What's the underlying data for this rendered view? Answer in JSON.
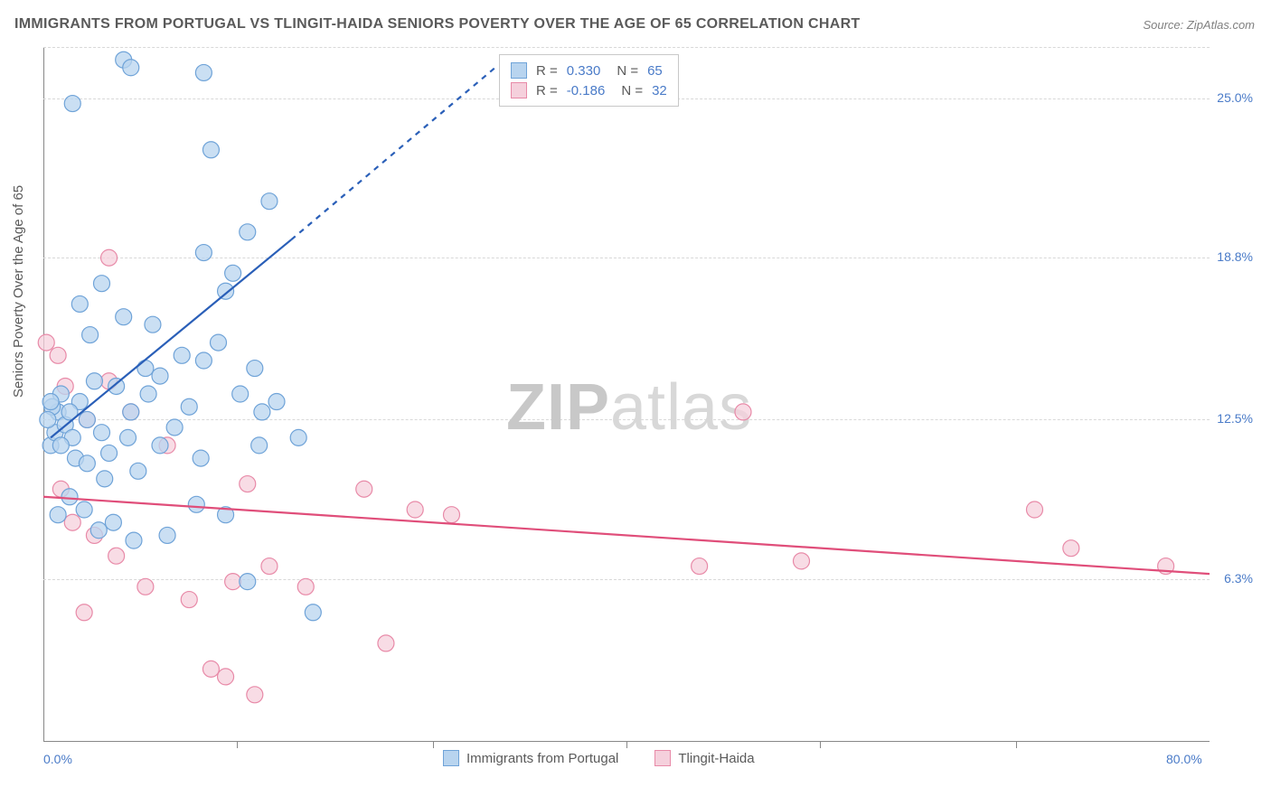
{
  "title": "IMMIGRANTS FROM PORTUGAL VS TLINGIT-HAIDA SENIORS POVERTY OVER THE AGE OF 65 CORRELATION CHART",
  "source": "Source: ZipAtlas.com",
  "ylabel": "Seniors Poverty Over the Age of 65",
  "watermark_a": "ZIP",
  "watermark_b": "atlas",
  "chart": {
    "type": "scatter",
    "xlim": [
      0,
      80
    ],
    "ylim": [
      0,
      27
    ],
    "x_ticks": [
      0,
      80
    ],
    "x_tick_labels": [
      "0.0%",
      "80.0%"
    ],
    "x_minor_ticks": [
      13.3,
      26.7,
      40,
      53.3,
      66.7
    ],
    "y_grid": [
      6.3,
      12.5,
      18.8,
      25.0
    ],
    "y_tick_labels": [
      "6.3%",
      "12.5%",
      "18.8%",
      "25.0%"
    ],
    "background_color": "#ffffff",
    "grid_color": "#d8d8d8",
    "axis_color": "#888888",
    "title_color": "#5a5a5a",
    "title_fontsize": 16,
    "label_fontsize": 15,
    "tick_fontsize": 14,
    "tick_color": "#4a7bc8"
  },
  "series": {
    "portugal": {
      "label": "Immigrants from Portugal",
      "color_fill": "#b8d4ef",
      "color_stroke": "#6fa3d8",
      "marker_radius": 9,
      "marker_opacity": 0.75,
      "trend_color": "#2a5fb8",
      "trend_width": 2.2,
      "trend_solid": {
        "x1": 0.5,
        "y1": 11.8,
        "x2": 17,
        "y2": 19.5
      },
      "trend_dash": {
        "x1": 17,
        "y1": 19.5,
        "x2": 31,
        "y2": 26.2
      },
      "R": "0.330",
      "N": "65",
      "points": [
        [
          0.5,
          11.5
        ],
        [
          0.8,
          12.0
        ],
        [
          1.0,
          12.8
        ],
        [
          1.2,
          13.5
        ],
        [
          0.6,
          13.0
        ],
        [
          1.5,
          12.3
        ],
        [
          2.0,
          11.8
        ],
        [
          2.5,
          13.2
        ],
        [
          3.0,
          12.5
        ],
        [
          3.5,
          14.0
        ],
        [
          4.0,
          12.0
        ],
        [
          4.5,
          11.2
        ],
        [
          5.0,
          13.8
        ],
        [
          6.0,
          12.8
        ],
        [
          7.0,
          14.5
        ],
        [
          8.0,
          11.5
        ],
        [
          9.0,
          12.2
        ],
        [
          10.0,
          13.0
        ],
        [
          11.0,
          14.8
        ],
        [
          12.0,
          15.5
        ],
        [
          5.5,
          16.5
        ],
        [
          3.2,
          15.8
        ],
        [
          7.5,
          16.2
        ],
        [
          4.8,
          8.5
        ],
        [
          6.2,
          7.8
        ],
        [
          8.5,
          8.0
        ],
        [
          10.5,
          9.2
        ],
        [
          12.5,
          8.8
        ],
        [
          5.5,
          26.5
        ],
        [
          6.0,
          26.2
        ],
        [
          11.0,
          26.0
        ],
        [
          2.0,
          24.8
        ],
        [
          11.5,
          23.0
        ],
        [
          14.0,
          19.8
        ],
        [
          15.5,
          21.0
        ],
        [
          11.0,
          19.0
        ],
        [
          12.5,
          17.5
        ],
        [
          14.5,
          14.5
        ],
        [
          15.0,
          12.8
        ],
        [
          13.0,
          18.2
        ],
        [
          1.8,
          9.5
        ],
        [
          2.8,
          9.0
        ],
        [
          3.8,
          8.2
        ],
        [
          1.0,
          8.8
        ],
        [
          2.2,
          11.0
        ],
        [
          0.3,
          12.5
        ],
        [
          0.5,
          13.2
        ],
        [
          1.2,
          11.5
        ],
        [
          1.8,
          12.8
        ],
        [
          6.5,
          10.5
        ],
        [
          8.0,
          14.2
        ],
        [
          9.5,
          15.0
        ],
        [
          10.8,
          11.0
        ],
        [
          7.2,
          13.5
        ],
        [
          5.8,
          11.8
        ],
        [
          4.2,
          10.2
        ],
        [
          3.0,
          10.8
        ],
        [
          13.5,
          13.5
        ],
        [
          14.8,
          11.5
        ],
        [
          16.0,
          13.2
        ],
        [
          17.5,
          11.8
        ],
        [
          2.5,
          17.0
        ],
        [
          4.0,
          17.8
        ],
        [
          18.5,
          5.0
        ],
        [
          14.0,
          6.2
        ]
      ]
    },
    "tlingit": {
      "label": "Tlingit-Haida",
      "color_fill": "#f5d0dc",
      "color_stroke": "#e88aa8",
      "marker_radius": 9,
      "marker_opacity": 0.75,
      "trend_color": "#e04e7a",
      "trend_width": 2.2,
      "trend_solid": {
        "x1": 0,
        "y1": 9.5,
        "x2": 80,
        "y2": 6.5
      },
      "R": "-0.186",
      "N": "32",
      "points": [
        [
          4.5,
          18.8
        ],
        [
          0.2,
          15.5
        ],
        [
          1.0,
          15.0
        ],
        [
          1.5,
          13.8
        ],
        [
          3.0,
          12.5
        ],
        [
          4.5,
          14.0
        ],
        [
          6.0,
          12.8
        ],
        [
          8.5,
          11.5
        ],
        [
          14.0,
          10.0
        ],
        [
          2.0,
          8.5
        ],
        [
          3.5,
          8.0
        ],
        [
          5.0,
          7.2
        ],
        [
          7.0,
          6.0
        ],
        [
          10.0,
          5.5
        ],
        [
          13.0,
          6.2
        ],
        [
          15.5,
          6.8
        ],
        [
          18.0,
          6.0
        ],
        [
          11.5,
          2.8
        ],
        [
          12.5,
          2.5
        ],
        [
          14.5,
          1.8
        ],
        [
          22.0,
          9.8
        ],
        [
          25.5,
          9.0
        ],
        [
          28.0,
          8.8
        ],
        [
          23.5,
          3.8
        ],
        [
          45.0,
          6.8
        ],
        [
          48.0,
          12.8
        ],
        [
          52.0,
          7.0
        ],
        [
          68.0,
          9.0
        ],
        [
          70.5,
          7.5
        ],
        [
          77.0,
          6.8
        ],
        [
          1.2,
          9.8
        ],
        [
          2.8,
          5.0
        ]
      ]
    }
  },
  "stats_box": {
    "rows": [
      {
        "swatch_fill": "#b8d4ef",
        "swatch_stroke": "#6fa3d8",
        "r_label": "R =",
        "r_val": "0.330",
        "n_label": "N =",
        "n_val": "65",
        "val_class": "stat-val-blue"
      },
      {
        "swatch_fill": "#f5d0dc",
        "swatch_stroke": "#e88aa8",
        "r_label": "R =",
        "r_val": "-0.186",
        "n_label": "N =",
        "n_val": "32",
        "val_class": "stat-val-blue"
      }
    ]
  }
}
